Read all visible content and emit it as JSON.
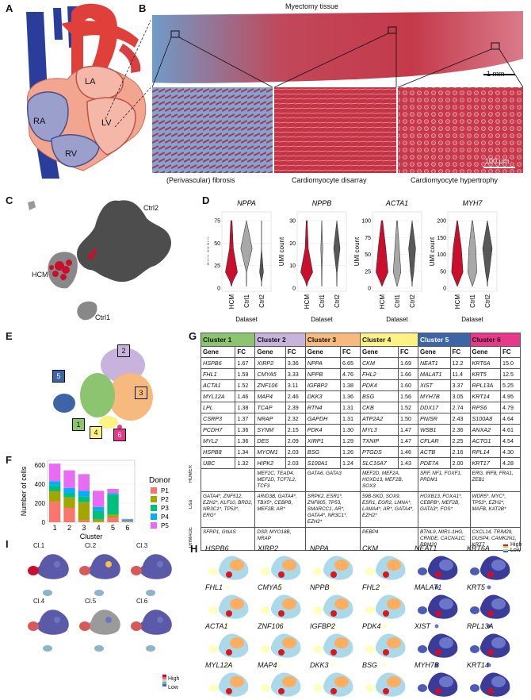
{
  "panels": {
    "a": "A",
    "b": "B",
    "c": "C",
    "d": "D",
    "e": "E",
    "f": "F",
    "g": "G",
    "h": "H",
    "i": "I"
  },
  "panel_a": {
    "la": "LA",
    "lv": "LV",
    "ra": "RA",
    "rv": "RV"
  },
  "panel_b": {
    "title": "Myectomy tissue",
    "scalebar_main": "1 mm",
    "scalebar_inset": "100 μm",
    "captions": [
      "(Perivascular) fibrosis",
      "Cardiomyocyte disarray",
      "Cardiomyocyte hypertrophy"
    ]
  },
  "panel_c": {
    "ctrl2": "Ctrl2",
    "hcm": "HCM",
    "ctrl1": "Ctrl1"
  },
  "panel_d": {
    "ylabel": "UMI count",
    "xlabel": "Dataset",
    "categories": [
      "HCM",
      "Ctrl1",
      "Ctrl2"
    ],
    "genes": [
      {
        "name": "NPPA",
        "ticks": [
          "0",
          "25",
          "50",
          "75"
        ]
      },
      {
        "name": "NPPB",
        "ticks": [
          "0",
          "10",
          "20",
          "30"
        ]
      },
      {
        "name": "ACTA1",
        "ticks": [
          "0",
          "25",
          "50",
          "75",
          "100"
        ]
      },
      {
        "name": "MYH7",
        "ticks": [
          "0",
          "50",
          "100",
          "150",
          "200"
        ]
      }
    ]
  },
  "panel_e": {
    "clusters": [
      "1",
      "2",
      "3",
      "4",
      "5",
      "6"
    ]
  },
  "chart_data": {
    "type": "bar",
    "stacked": true,
    "xlabel": "Cluster",
    "ylabel": "Number of cells",
    "ylim": [
      0,
      650
    ],
    "yticks": [
      0,
      200,
      400,
      600
    ],
    "categories": [
      "1",
      "2",
      "3",
      "4",
      "5",
      "6"
    ],
    "legend_title": "Donor",
    "legend_position": "right",
    "series": [
      {
        "name": "P1",
        "color": "#f8766d",
        "values": [
          215,
          150,
          20,
          5,
          50,
          5
        ]
      },
      {
        "name": "P2",
        "color": "#a3a500",
        "values": [
          110,
          110,
          190,
          25,
          30,
          5
        ]
      },
      {
        "name": "P3",
        "color": "#00bf7d",
        "values": [
          60,
          40,
          60,
          90,
          210,
          5
        ]
      },
      {
        "name": "P4",
        "color": "#00b0f6",
        "values": [
          45,
          60,
          60,
          40,
          15,
          10
        ]
      },
      {
        "name": "P5",
        "color": "#e76bf3",
        "values": [
          185,
          185,
          175,
          170,
          45,
          10
        ]
      }
    ]
  },
  "panel_g": {
    "clusters": [
      {
        "name": "Cluster 1",
        "color": "#8cc46f",
        "genes": [
          "HSPB6",
          "FHL1",
          "ACTA1",
          "MYL12A",
          "LPL",
          "CSRP3",
          "PCDH7",
          "MYL2",
          "HSPB8",
          "UBC"
        ],
        "fc": [
          "1.67",
          "1.59",
          "1.52",
          "1.46",
          "1.38",
          "1.37",
          "1.36",
          "1.36",
          "1.34",
          "1.32"
        ]
      },
      {
        "name": "Cluster 2",
        "color": "#c7b3dc",
        "genes": [
          "XIRP2",
          "CMYA5",
          "ZNF106",
          "MAP4",
          "TCAP",
          "NRAP",
          "SYNM",
          "DES",
          "MYOM1",
          "HIPK2"
        ],
        "fc": [
          "3.36",
          "3.33",
          "3.11",
          "2.46",
          "2.39",
          "2.32",
          "2.15",
          "2.09",
          "2.03",
          "2.03"
        ]
      },
      {
        "name": "Cluster 3",
        "color": "#f6b97e",
        "genes": [
          "NPPA",
          "NPPB",
          "IGFBP2",
          "DKK3",
          "RTN4",
          "GAPDH",
          "PDK4",
          "XIRP1",
          "BSG",
          "S100A1"
        ],
        "fc": [
          "6.65",
          "4.76",
          "1.38",
          "1.36",
          "1.31",
          "1.31",
          "1.30",
          "1.29",
          "1.26",
          "1.24"
        ]
      },
      {
        "name": "Cluster 4",
        "color": "#fdf285",
        "genes": [
          "CKM",
          "FHL2",
          "PDK4",
          "BSG",
          "CKB",
          "ATP2A2",
          "MYL3",
          "TXNIP",
          "PTGDS",
          "SLC16A7"
        ],
        "fc": [
          "1.69",
          "1.66",
          "1.60",
          "1.56",
          "1.52",
          "1.50",
          "1.47",
          "1.47",
          "1.46",
          "1.43"
        ]
      },
      {
        "name": "Cluster 5",
        "color": "#3e64a8",
        "genes": [
          "NEAT1",
          "MALAT1",
          "XIST",
          "MYH7B",
          "DDX17",
          "PNISR",
          "WSB1",
          "CFLAR",
          "ACTB",
          "PDE7A"
        ],
        "fc": [
          "12.2",
          "11.4",
          "3.37",
          "3.05",
          "2.74",
          "2.43",
          "2.36",
          "2.25",
          "2.16",
          "2.00"
        ]
      },
      {
        "name": "Cluster 6",
        "color": "#e8388a",
        "genes": [
          "KRT6A",
          "KRT5",
          "RPL13A",
          "KRT14",
          "RPS6",
          "S100A8",
          "ANXA2",
          "ACTG1",
          "RPL14",
          "KRT17"
        ],
        "fc": [
          "15.0",
          "12.5",
          "5.25",
          "4.95",
          "4.79",
          "4.64",
          "4.61",
          "4.54",
          "4.30",
          "4.28"
        ]
      }
    ],
    "gene_label": "Gene",
    "fc_label": "FC",
    "homer_label": "HOMER",
    "lisa_label": "Lisa",
    "trimage_label": "TRIMAGE",
    "homer": [
      "",
      "MEF2C, TEAD4, MEF2D, TCF7L2, TCF3",
      "GATA6, GATA3",
      "MEF2D, MEF2A, HOXD13, MEF2B, SOX3",
      "SRF, NF1, FOXF1, PRDM1",
      "ERG, IRF8, FRA1, ZEB1"
    ],
    "lisa": [
      "GATA4*, ZNF512, EZH2*, KLF10, BRD2, NR3C1*, TP53*, ERG*",
      "ARID3B, GATA4*, TBX5*, CEBPB, MEF2B, AR*",
      "SRPK2, ESR1*, ZNF805, TP53, SMARCC1, AR*, GATA4*, NR3C1*, EZH2*",
      "59B-SKD, SOX9, ESR1, EGR2, LMNA*, LAMA4*, AR*, GATA4*, EZH2*",
      "HOXB13, FOXA1*, CEBPB*, MEF2B, GATA3*, FOS*",
      "WDR5*, MYC*, TP53*, EZH2*, MAFB, KAT2B*"
    ],
    "trimage": [
      "SFRP1, GNAS",
      "DSP, MYO18B, NRAP",
      "",
      "PEBP4",
      "BTNL9, MIR1-1HG, CRNDE, CACNA1C, RBM20",
      "CXCL14, TRIM29, DUSP4, CAMK2N1, KRT7"
    ]
  },
  "panel_h": {
    "legend_high": "High",
    "legend_low": "Low",
    "genes": [
      [
        "HSPB6",
        "XIRP2",
        "NPPA",
        "CKM",
        "NEAT1",
        "KRT6A"
      ],
      [
        "FHL1",
        "CMYA5",
        "NPPB",
        "FHL2",
        "MALAT1",
        "KRT5"
      ],
      [
        "ACTA1",
        "ZNF106",
        "IGFBP2",
        "PDK4",
        "XIST",
        "RPL13A"
      ],
      [
        "MYL12A",
        "MAP4",
        "DKK3",
        "BSG",
        "MYH7B",
        "KRT14"
      ]
    ]
  },
  "panel_i": {
    "labels": [
      "Cl.1",
      "Cl.2",
      "Cl.3",
      "Cl.4",
      "Cl.5",
      "Cl.6"
    ],
    "legend_high": "High",
    "legend_low": "Low"
  }
}
